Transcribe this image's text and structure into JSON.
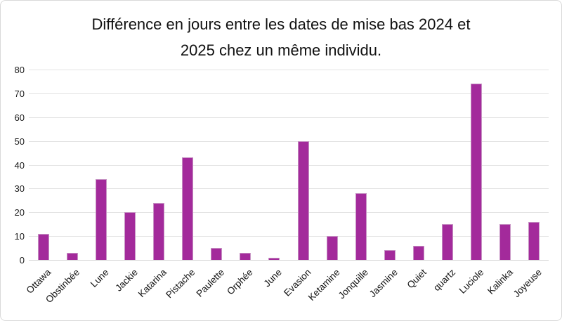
{
  "chart": {
    "title_lines": [
      "Différence en jours entre les dates de mise bas 2024 et",
      "2025 chez un même individu."
    ],
    "colors": {
      "bar_fill": "#A32A9B",
      "bar_border": "#C794C4",
      "gridline": "#E3E3E3",
      "zero_line": "#D6D6D6",
      "axis_text": "#1A1A1A",
      "frame_border": "#D9D9D9",
      "background": "#FFFFFF"
    }
  },
  "chart_data": {
    "type": "bar",
    "title": "Différence en jours entre les dates de mise bas 2024 et 2025 chez un même individu.",
    "categories": [
      "Ottawa",
      "Obstinbée",
      "Lune",
      "Jackie",
      "Katarina",
      "Pistache",
      "Paulette",
      "Orphée",
      "June",
      "Evasion",
      "Ketamine",
      "Jonquille",
      "Jasmine",
      "Quiet",
      "quartz",
      "Luciole",
      "Kalinka",
      "Joyeuse"
    ],
    "values": [
      11,
      3,
      34,
      20,
      24,
      43,
      5,
      3,
      1,
      50,
      10,
      28,
      4,
      6,
      15,
      74,
      15,
      16
    ],
    "xlabel": "",
    "ylabel": "",
    "ylim": [
      0,
      80
    ],
    "ytick_step": 10,
    "ytick_labels": [
      "0",
      "10",
      "20",
      "30",
      "40",
      "50",
      "60",
      "70",
      "80"
    ],
    "grid": true,
    "legend": false,
    "x_label_rotation_deg": -45
  }
}
